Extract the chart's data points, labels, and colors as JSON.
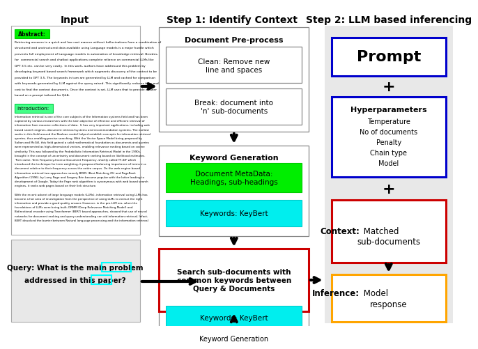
{
  "title_input": "Input",
  "title_step1": "Step 1: Identify Context",
  "title_step2": "Step 2: LLM based inferencing",
  "white": "#ffffff",
  "lightgray": "#e8e8e8",
  "green": "#00ee00",
  "cyan": "#00eeee",
  "blue_border": "#0000cc",
  "red_border": "#cc0000",
  "orange_border": "#ffa500",
  "black": "#000000",
  "abstract_lines": [
    "Retrieving answers in a quick and low cost manner without hallucinations from a combination of",
    "structured and unstructured data available using Language models is a major hurdle which",
    "prevents full employment of Language models in automation of knowledge retrieval. Besides,",
    "for  commercial search and chatbot applications complete reliance on commercial LLMs like",
    "GPT 3.5 etc. can be very costly.  In this work, authors have addressed this problem by",
    "developing keyword based search framework which augments discovery of the context to be",
    "provided to GPT 3.5. The keywords in turn are generated by LLM and cached for comparison",
    "with keywords generated by LLM against the query raised. This significantly reduces time and",
    "cost to find the context documents. Once the context is set, LLM uses that to provide answer",
    "based on a prompt tailored for Q&A."
  ],
  "intro_lines": [
    "Information retrieval is one of the core subjects of the Information systems field and has been",
    "explored by various researchers with the twin objective of effective and efficient retrieval of",
    "information from massive collections of data.  It has very important applications, including web",
    "based search engines, document retrieval systems and recommendation systems. The earliest",
    "works in this field around the Boolean model helped establish concepts for information retrieval",
    "queries, thus enabling precise searching. With the Vector Space Model being proposed by",
    "Salton and McGill, this field gained a solid mathematical foundation as documents and queries",
    "were represented as high-dimensional vectors, enabling relevance ranking based on cosine",
    "similarity. This was followed by the Probabilistic Information Retrieval Model in the 1990s,",
    "brought in the concept of uncertainty and document ranking based on likelihood estimates.",
    "Then came, Term Frequency-Inverse Document Frequency, shortly called TF-IDF which",
    "introduced the technique for term weighting, it proposed balancing importance of terms in a",
    "document relative to their frequency across the entire corpus. On the web engine based",
    "information retrieval two approaches namely BM25 (Best Matching 25) and PageRank",
    "Algorithm (1996), by Larry Page and Sergery Brin became popular with the latter leading to",
    "development of Google. Today the Page rank algorithm is synonymous with web based search",
    "engines, it ranks web pages based on their link structure.",
    "",
    "With the recent advent of large language models (LLMs), information retrieval using LLMs has",
    "become a hot area of investigation from the perspective of using LLMs to extract the right",
    "information and provide a good quality answer. However, in the pre-LLM era, when the",
    "foundations of LLMs were being built, DRMM (Deep Relevance Matching Model) and",
    "Bidirectional encoder using Transformer (BERT) based approaches, showed that use of neural",
    "networks for document ranking and query understanding can aid information retrieval. Infact,",
    "BERT dissolved the barrier between Natural language processing and the information retrieval"
  ]
}
